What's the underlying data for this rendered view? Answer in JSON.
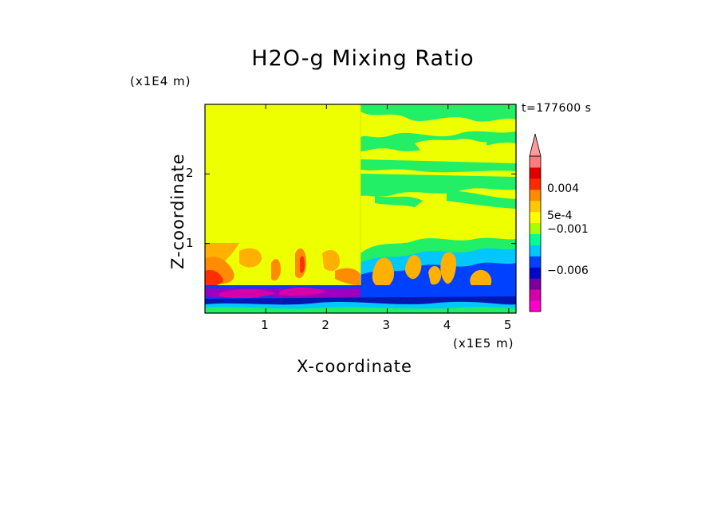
{
  "chart_data": {
    "type": "heatmap",
    "title": "H2O-g Mixing Ratio",
    "xlabel": "X-coordinate",
    "ylabel": "Z-coordinate",
    "x_unit": "(x1E5 m)",
    "y_unit": "(x1E4 m)",
    "time_label": "t=177600 s",
    "x_ticks": [
      1,
      2,
      3,
      4,
      5
    ],
    "y_ticks": [
      1,
      2
    ],
    "xlim": [
      0,
      5.12
    ],
    "ylim": [
      0,
      3.0
    ],
    "colorbar": {
      "extend": "max",
      "colors": [
        "#ff00cc",
        "#d600a8",
        "#7a009e",
        "#0008c8",
        "#0040ff",
        "#00c8ff",
        "#00ff90",
        "#a8ff00",
        "#ffff00",
        "#ffc800",
        "#ff8c00",
        "#ff2a00",
        "#e00000",
        "#ff7a7a"
      ],
      "labels": [
        {
          "text": "0.004",
          "value": 0.004
        },
        {
          "text": "5e-4",
          "value": 0.0005
        },
        {
          "text": "−0.001",
          "value": -0.001
        },
        {
          "text": "−0.006",
          "value": -0.006
        }
      ]
    },
    "regions_description_colors": {
      "background": "#eeff00",
      "upper_right_cloud": "#22ee66",
      "low_level_blue": "#0040ff",
      "deep_blue": "#0018b0",
      "purple": "#9a00c0",
      "orange": "#ffb000",
      "red": "#ff3000"
    }
  }
}
